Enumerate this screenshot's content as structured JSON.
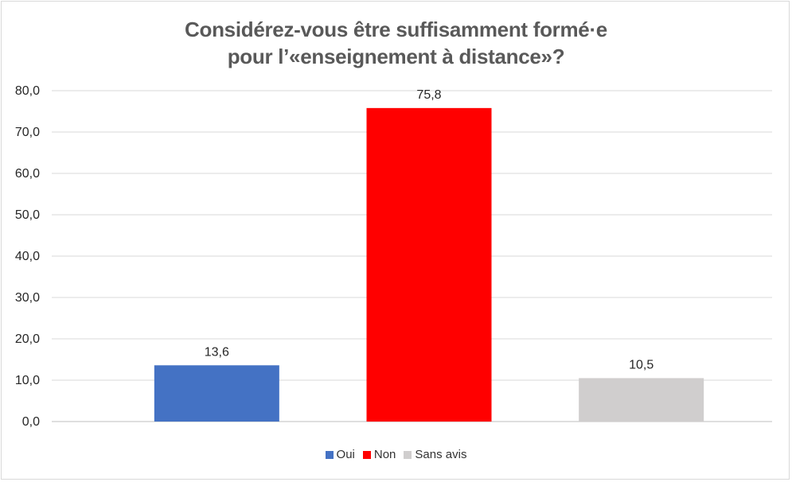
{
  "chart_data": {
    "type": "bar",
    "title_lines": [
      "Considérez-vous être suffisamment formé·e",
      "pour l’«enseignement à distance»?"
    ],
    "categories": [
      "Oui",
      "Non",
      "Sans avis"
    ],
    "values": [
      13.6,
      75.8,
      10.5
    ],
    "value_labels": [
      "13,6",
      "75,8",
      "10,5"
    ],
    "colors": [
      "#4472C4",
      "#FF0000",
      "#D0CECE"
    ],
    "y_ticks": [
      "0,0",
      "10,0",
      "20,0",
      "30,0",
      "40,0",
      "50,0",
      "60,0",
      "70,0",
      "80,0"
    ],
    "ylim": [
      0,
      80
    ],
    "grid": true,
    "legend_position": "bottom",
    "xlabel": "",
    "ylabel": ""
  }
}
